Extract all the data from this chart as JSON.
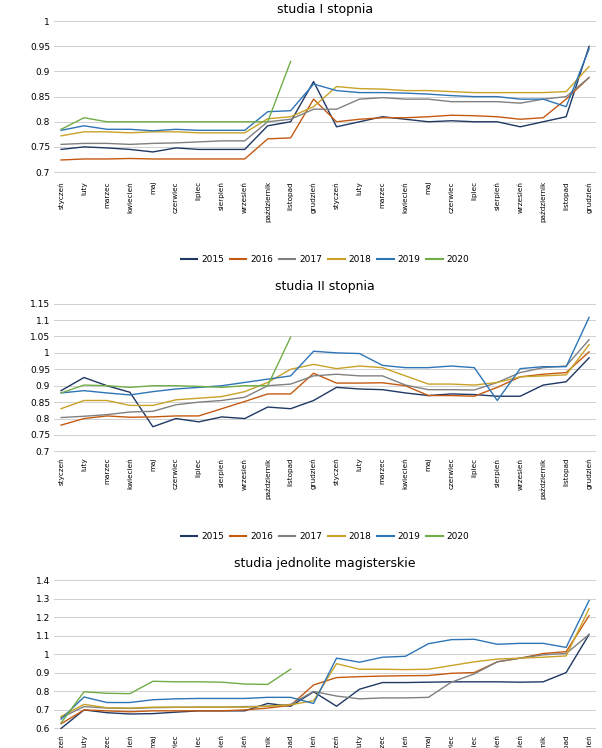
{
  "months": [
    "styczeń",
    "luty",
    "marzec",
    "kwiecień",
    "maj",
    "czerwiec",
    "lipiec",
    "sierpień",
    "wrzesień",
    "październik",
    "listopad",
    "grudzień",
    "styczeń",
    "luty",
    "marzec",
    "kwiecień",
    "maj",
    "czerwiec",
    "lipiec",
    "sierpień",
    "wrzesień",
    "październik",
    "listopad",
    "grudzień"
  ],
  "colors": {
    "2015": "#1f3864",
    "2016": "#c55a11",
    "2017": "#808080",
    "2018": "#c9a227",
    "2019": "#2e75b6",
    "2020": "#70ad47"
  },
  "chart1": {
    "title": "studia I stopnia",
    "ylim": [
      0.685,
      1.005
    ],
    "yticks": [
      0.7,
      0.75,
      0.8,
      0.85,
      0.9,
      0.95,
      1.0
    ],
    "series": {
      "2015": [
        0.745,
        0.75,
        0.748,
        0.745,
        0.74,
        0.748,
        0.745,
        0.745,
        0.745,
        0.792,
        0.8,
        0.88,
        0.79,
        0.8,
        0.81,
        0.805,
        0.8,
        0.802,
        0.8,
        0.8,
        0.79,
        0.8,
        0.81,
        0.95
      ],
      "2016": [
        0.724,
        0.726,
        0.726,
        0.727,
        0.726,
        0.726,
        0.726,
        0.726,
        0.726,
        0.766,
        0.768,
        0.845,
        0.8,
        0.805,
        0.808,
        0.808,
        0.81,
        0.813,
        0.812,
        0.81,
        0.805,
        0.808,
        0.845,
        0.888
      ],
      "2017": [
        0.755,
        0.757,
        0.757,
        0.755,
        0.757,
        0.758,
        0.76,
        0.762,
        0.762,
        0.8,
        0.805,
        0.825,
        0.825,
        0.845,
        0.848,
        0.845,
        0.845,
        0.84,
        0.84,
        0.84,
        0.837,
        0.845,
        0.85,
        0.888
      ],
      "2018": [
        0.772,
        0.78,
        0.78,
        0.778,
        0.78,
        0.78,
        0.778,
        0.778,
        0.778,
        0.806,
        0.81,
        0.83,
        0.87,
        0.866,
        0.865,
        0.862,
        0.862,
        0.86,
        0.858,
        0.858,
        0.858,
        0.858,
        0.86,
        0.91
      ],
      "2019": [
        0.783,
        0.792,
        0.785,
        0.785,
        0.782,
        0.785,
        0.783,
        0.783,
        0.783,
        0.82,
        0.822,
        0.875,
        0.862,
        0.858,
        0.858,
        0.857,
        0.855,
        0.852,
        0.85,
        0.85,
        0.845,
        0.845,
        0.83,
        0.945
      ],
      "2020": [
        0.785,
        0.808,
        0.8,
        0.8,
        0.8,
        0.8,
        0.8,
        0.8,
        0.8,
        0.8,
        0.92,
        null,
        null,
        null,
        null,
        null,
        null,
        null,
        null,
        null,
        null,
        null,
        null,
        null
      ]
    }
  },
  "chart2": {
    "title": "studia II stopnia",
    "ylim": [
      0.685,
      1.175
    ],
    "yticks": [
      0.7,
      0.75,
      0.8,
      0.85,
      0.9,
      0.95,
      1.0,
      1.05,
      1.1,
      1.15
    ],
    "series": {
      "2015": [
        0.885,
        0.925,
        0.9,
        0.88,
        0.775,
        0.8,
        0.79,
        0.805,
        0.8,
        0.835,
        0.83,
        0.855,
        0.895,
        0.89,
        0.888,
        0.878,
        0.87,
        0.875,
        0.873,
        0.868,
        0.868,
        0.902,
        0.912,
        0.985
      ],
      "2016": [
        0.78,
        0.8,
        0.808,
        0.804,
        0.805,
        0.808,
        0.808,
        0.83,
        0.852,
        0.875,
        0.875,
        0.938,
        0.908,
        0.908,
        0.909,
        0.9,
        0.87,
        0.87,
        0.868,
        0.895,
        0.927,
        0.935,
        0.94,
        1.003
      ],
      "2017": [
        0.803,
        0.807,
        0.812,
        0.82,
        0.822,
        0.842,
        0.85,
        0.855,
        0.865,
        0.9,
        0.905,
        0.93,
        0.935,
        0.93,
        0.93,
        0.902,
        0.888,
        0.888,
        0.887,
        0.91,
        0.94,
        0.955,
        0.96,
        1.04
      ],
      "2018": [
        0.83,
        0.855,
        0.855,
        0.84,
        0.84,
        0.857,
        0.862,
        0.867,
        0.882,
        0.91,
        0.95,
        0.965,
        0.952,
        0.96,
        0.955,
        0.93,
        0.905,
        0.905,
        0.902,
        0.91,
        0.927,
        0.93,
        0.933,
        1.025
      ],
      "2019": [
        0.878,
        0.885,
        0.878,
        0.872,
        0.882,
        0.89,
        0.895,
        0.9,
        0.91,
        0.92,
        0.93,
        1.005,
        1.0,
        0.998,
        0.962,
        0.955,
        0.955,
        0.96,
        0.955,
        0.855,
        0.952,
        0.958,
        0.958,
        1.108
      ],
      "2020": [
        0.878,
        0.902,
        0.9,
        0.895,
        0.9,
        0.9,
        0.898,
        0.895,
        0.9,
        0.9,
        1.048,
        null,
        null,
        null,
        null,
        null,
        null,
        null,
        null,
        null,
        null,
        null,
        null,
        null
      ]
    }
  },
  "chart3": {
    "title": "studia jednolite magisterskie",
    "ylim": [
      0.575,
      1.445
    ],
    "yticks": [
      0.6,
      0.7,
      0.8,
      0.9,
      1.0,
      1.1,
      1.2,
      1.3,
      1.4
    ],
    "series": {
      "2015": [
        0.6,
        0.7,
        0.685,
        0.678,
        0.68,
        0.688,
        0.695,
        0.695,
        0.695,
        0.735,
        0.72,
        0.798,
        0.72,
        0.812,
        0.848,
        0.848,
        0.85,
        0.852,
        0.852,
        0.852,
        0.85,
        0.852,
        0.902,
        1.108
      ],
      "2016": [
        0.625,
        0.7,
        0.695,
        0.69,
        0.695,
        0.695,
        0.695,
        0.695,
        0.7,
        0.71,
        0.725,
        0.835,
        0.875,
        0.88,
        0.883,
        0.885,
        0.886,
        0.898,
        0.902,
        0.96,
        0.98,
        1.005,
        1.015,
        1.21
      ],
      "2017": [
        0.658,
        0.718,
        0.71,
        0.708,
        0.712,
        0.714,
        0.715,
        0.715,
        0.718,
        0.72,
        0.73,
        0.8,
        0.775,
        0.76,
        0.765,
        0.765,
        0.768,
        0.85,
        0.895,
        0.96,
        0.98,
        0.998,
        1.005,
        1.108
      ],
      "2018": [
        0.665,
        0.73,
        0.712,
        0.71,
        0.715,
        0.715,
        0.715,
        0.715,
        0.715,
        0.72,
        0.728,
        0.75,
        0.95,
        0.92,
        0.92,
        0.918,
        0.92,
        0.94,
        0.96,
        0.975,
        0.98,
        0.985,
        0.992,
        1.248
      ],
      "2019": [
        0.65,
        0.77,
        0.74,
        0.74,
        0.755,
        0.76,
        0.762,
        0.762,
        0.762,
        0.768,
        0.768,
        0.735,
        0.98,
        0.958,
        0.985,
        0.99,
        1.058,
        1.08,
        1.082,
        1.055,
        1.06,
        1.06,
        1.038,
        1.292
      ],
      "2020": [
        0.63,
        0.798,
        0.79,
        0.788,
        0.855,
        0.852,
        0.852,
        0.85,
        0.84,
        0.838,
        0.92,
        null,
        null,
        null,
        null,
        null,
        null,
        null,
        null,
        null,
        null,
        null,
        null,
        null
      ]
    }
  },
  "legend_years": [
    "2015",
    "2016",
    "2017",
    "2018",
    "2019",
    "2020"
  ],
  "fig_bg": "#ffffff",
  "plot_bg": "#ffffff"
}
